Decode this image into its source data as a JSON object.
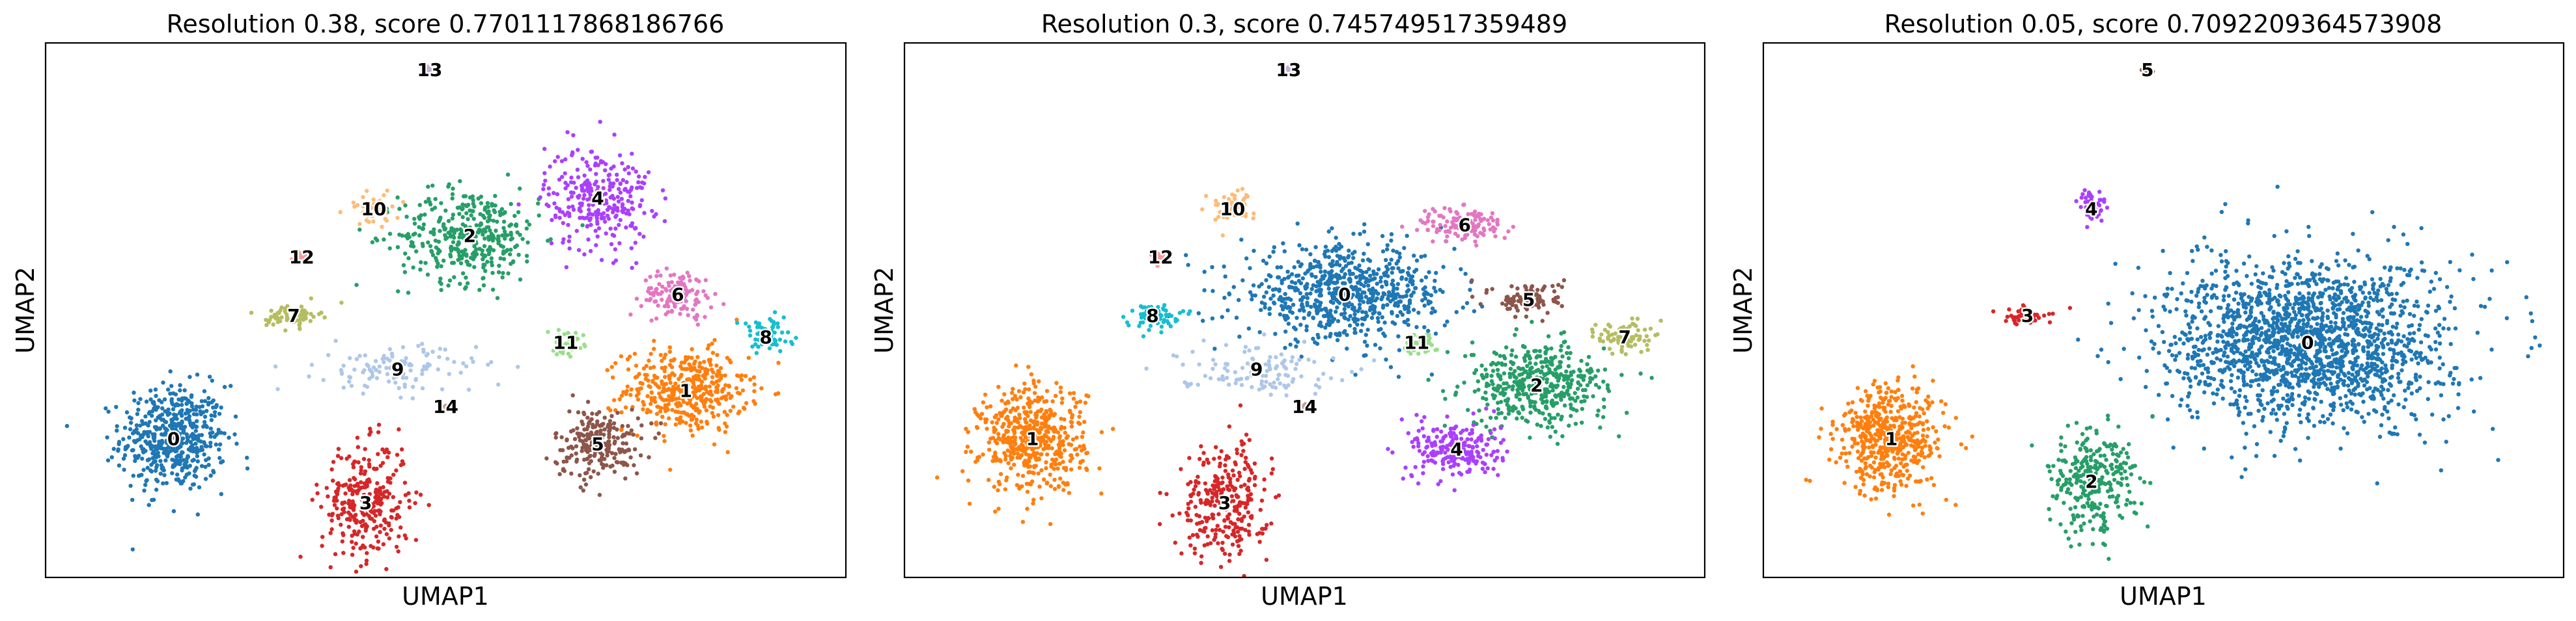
{
  "chart_data": [
    {
      "type": "scatter",
      "title": "Resolution 0.38, score 0.7701117868186766",
      "xlabel": "UMAP1",
      "ylabel": "UMAP2",
      "xlim": [
        0,
        100
      ],
      "ylim": [
        0,
        100
      ],
      "grid": false,
      "ticks": false,
      "clusters": [
        {
          "label": "0",
          "color": "#1f77b4",
          "center": [
            16,
            26
          ],
          "spread": [
            6,
            9
          ],
          "n": 520
        },
        {
          "label": "1",
          "color": "#ff7f0e",
          "center": [
            80,
            35
          ],
          "spread": [
            7,
            7
          ],
          "n": 420
        },
        {
          "label": "2",
          "color": "#279e68",
          "center": [
            53,
            64
          ],
          "spread": [
            8,
            8
          ],
          "n": 380
        },
        {
          "label": "3",
          "color": "#d62728",
          "center": [
            40,
            14
          ],
          "spread": [
            5,
            10
          ],
          "n": 300
        },
        {
          "label": "4",
          "color": "#aa40fc",
          "center": [
            69,
            71
          ],
          "spread": [
            6,
            9
          ],
          "n": 280
        },
        {
          "label": "5",
          "color": "#8c564b",
          "center": [
            69,
            25
          ],
          "spread": [
            5,
            6
          ],
          "n": 230
        },
        {
          "label": "6",
          "color": "#e377c2",
          "center": [
            79,
            53
          ],
          "spread": [
            4,
            4
          ],
          "n": 130
        },
        {
          "label": "7",
          "color": "#b5bd61",
          "center": [
            31,
            49
          ],
          "spread": [
            3,
            2
          ],
          "n": 70
        },
        {
          "label": "8",
          "color": "#17becf",
          "center": [
            90,
            45
          ],
          "spread": [
            3,
            3
          ],
          "n": 80
        },
        {
          "label": "9",
          "color": "#aec7e8",
          "center": [
            44,
            39
          ],
          "spread": [
            9,
            4
          ],
          "n": 120
        },
        {
          "label": "10",
          "color": "#ffbb78",
          "center": [
            41,
            69
          ],
          "spread": [
            3,
            3
          ],
          "n": 45
        },
        {
          "label": "11",
          "color": "#98df8a",
          "center": [
            65,
            44
          ],
          "spread": [
            2,
            2
          ],
          "n": 40
        },
        {
          "label": "12",
          "color": "#ff9896",
          "center": [
            32,
            60
          ],
          "spread": [
            1,
            1
          ],
          "n": 14
        },
        {
          "label": "13",
          "color": "#c5b0d5",
          "center": [
            48,
            95
          ],
          "spread": [
            0.6,
            0.6
          ],
          "n": 10
        },
        {
          "label": "14",
          "color": "#c49c94",
          "center": [
            50,
            32
          ],
          "spread": [
            0.5,
            0.5
          ],
          "n": 6
        }
      ]
    },
    {
      "type": "scatter",
      "title": "Resolution 0.3, score 0.745749517359489",
      "xlabel": "UMAP1",
      "ylabel": "UMAP2",
      "xlim": [
        0,
        100
      ],
      "ylim": [
        0,
        100
      ],
      "grid": false,
      "ticks": false,
      "clusters": [
        {
          "label": "0",
          "color": "#1f77b4",
          "center": [
            55,
            53
          ],
          "spread": [
            12,
            8
          ],
          "n": 700
        },
        {
          "label": "1",
          "color": "#ff7f0e",
          "center": [
            16,
            26
          ],
          "spread": [
            6,
            9
          ],
          "n": 520
        },
        {
          "label": "2",
          "color": "#279e68",
          "center": [
            79,
            36
          ],
          "spread": [
            8,
            7
          ],
          "n": 450
        },
        {
          "label": "3",
          "color": "#d62728",
          "center": [
            40,
            14
          ],
          "spread": [
            5,
            10
          ],
          "n": 300
        },
        {
          "label": "4",
          "color": "#aa40fc",
          "center": [
            69,
            24
          ],
          "spread": [
            5,
            5
          ],
          "n": 220
        },
        {
          "label": "5",
          "color": "#8c564b",
          "center": [
            78,
            52
          ],
          "spread": [
            4,
            3
          ],
          "n": 100
        },
        {
          "label": "6",
          "color": "#e377c2",
          "center": [
            70,
            66
          ],
          "spread": [
            5,
            3
          ],
          "n": 130
        },
        {
          "label": "7",
          "color": "#b5bd61",
          "center": [
            90,
            45
          ],
          "spread": [
            3,
            3
          ],
          "n": 80
        },
        {
          "label": "8",
          "color": "#17becf",
          "center": [
            31,
            49
          ],
          "spread": [
            3,
            2
          ],
          "n": 70
        },
        {
          "label": "9",
          "color": "#aec7e8",
          "center": [
            44,
            39
          ],
          "spread": [
            9,
            4
          ],
          "n": 120
        },
        {
          "label": "10",
          "color": "#ffbb78",
          "center": [
            41,
            69
          ],
          "spread": [
            3,
            3
          ],
          "n": 45
        },
        {
          "label": "11",
          "color": "#98df8a",
          "center": [
            64,
            44
          ],
          "spread": [
            2,
            2
          ],
          "n": 40
        },
        {
          "label": "12",
          "color": "#ff9896",
          "center": [
            32,
            60
          ],
          "spread": [
            1,
            1
          ],
          "n": 14
        },
        {
          "label": "13",
          "color": "#c5b0d5",
          "center": [
            48,
            95
          ],
          "spread": [
            0.6,
            0.6
          ],
          "n": 10
        },
        {
          "label": "14",
          "color": "#c49c94",
          "center": [
            50,
            32
          ],
          "spread": [
            0.5,
            0.5
          ],
          "n": 6
        }
      ]
    },
    {
      "type": "scatter",
      "title": "Resolution 0.05, score 0.7092209364573908",
      "xlabel": "UMAP1",
      "ylabel": "UMAP2",
      "xlim": [
        0,
        100
      ],
      "ylim": [
        0,
        100
      ],
      "grid": false,
      "ticks": false,
      "clusters": [
        {
          "label": "0",
          "color": "#1f77b4",
          "center": [
            68,
            44
          ],
          "spread": [
            16,
            14
          ],
          "n": 1800
        },
        {
          "label": "1",
          "color": "#ff7f0e",
          "center": [
            16,
            26
          ],
          "spread": [
            6,
            9
          ],
          "n": 520
        },
        {
          "label": "2",
          "color": "#279e68",
          "center": [
            41,
            18
          ],
          "spread": [
            5,
            9
          ],
          "n": 300
        },
        {
          "label": "3",
          "color": "#d62728",
          "center": [
            33,
            49
          ],
          "spread": [
            3,
            1.5
          ],
          "n": 45
        },
        {
          "label": "4",
          "color": "#aa40fc",
          "center": [
            41,
            69
          ],
          "spread": [
            2,
            3
          ],
          "n": 40
        },
        {
          "label": "5",
          "color": "#8c564b",
          "center": [
            48,
            95
          ],
          "spread": [
            0.6,
            0.6
          ],
          "n": 10
        }
      ]
    }
  ]
}
